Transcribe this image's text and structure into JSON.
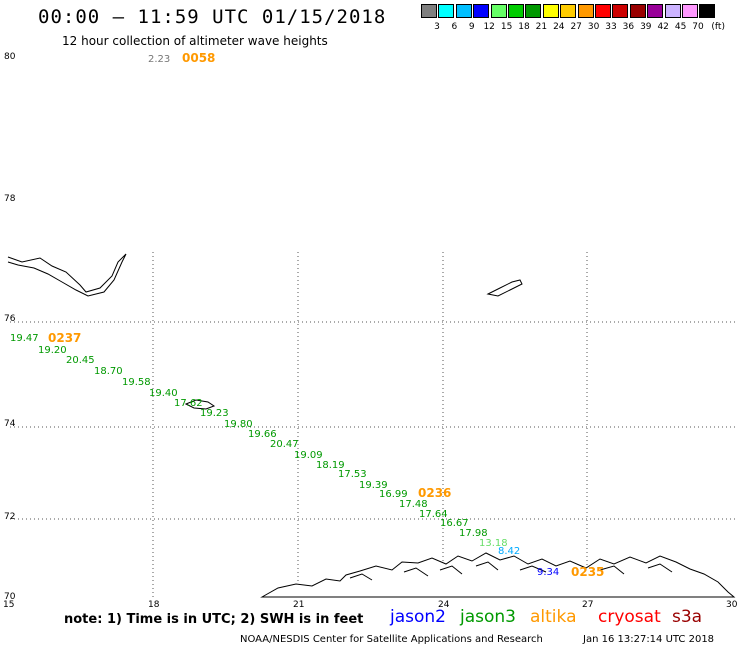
{
  "header": {
    "title": "00:00 – 11:59 UTC 01/15/2018",
    "subtitle": "12 hour collection of altimeter wave heights"
  },
  "legend": {
    "unit": "(ft)",
    "bins": [
      {
        "label": "3",
        "color": "#7f7f7f"
      },
      {
        "label": "6",
        "color": "#00ffff"
      },
      {
        "label": "9",
        "color": "#00bfff"
      },
      {
        "label": "12",
        "color": "#0000ff"
      },
      {
        "label": "15",
        "color": "#66ff66"
      },
      {
        "label": "18",
        "color": "#00cc00"
      },
      {
        "label": "21",
        "color": "#009900"
      },
      {
        "label": "24",
        "color": "#ffff00"
      },
      {
        "label": "27",
        "color": "#ffcc00"
      },
      {
        "label": "30",
        "color": "#ff9900"
      },
      {
        "label": "33",
        "color": "#ff0000"
      },
      {
        "label": "36",
        "color": "#cc0000"
      },
      {
        "label": "39",
        "color": "#990000"
      },
      {
        "label": "42",
        "color": "#990099"
      },
      {
        "label": "45",
        "color": "#ccb3ff"
      },
      {
        "label": "70",
        "color": "#ff99ff"
      },
      {
        "label": "",
        "color": "#000000"
      }
    ]
  },
  "axes": {
    "lat_labels": [
      "80",
      "78",
      "76",
      "74",
      "72",
      "70"
    ],
    "lon_labels": [
      "15",
      "18",
      "21",
      "24",
      "27",
      "30"
    ]
  },
  "top_annotation": {
    "value": "2.23",
    "time": "0058"
  },
  "time_marks": [
    "0237",
    "0236",
    "0235"
  ],
  "wave_readings": [
    {
      "value": "19.47",
      "color": "#009900"
    },
    {
      "value": "19.20",
      "color": "#009900"
    },
    {
      "value": "20.45",
      "color": "#009900"
    },
    {
      "value": "18.70",
      "color": "#009900"
    },
    {
      "value": "19.58",
      "color": "#009900"
    },
    {
      "value": "19.40",
      "color": "#009900"
    },
    {
      "value": "17.62",
      "color": "#009900"
    },
    {
      "value": "19.23",
      "color": "#009900"
    },
    {
      "value": "19.80",
      "color": "#009900"
    },
    {
      "value": "19.66",
      "color": "#009900"
    },
    {
      "value": "20.47",
      "color": "#009900"
    },
    {
      "value": "19.09",
      "color": "#009900"
    },
    {
      "value": "18.19",
      "color": "#009900"
    },
    {
      "value": "17.53",
      "color": "#009900"
    },
    {
      "value": "19.39",
      "color": "#009900"
    },
    {
      "value": "16.99",
      "color": "#009900"
    },
    {
      "value": "17.48",
      "color": "#009900"
    },
    {
      "value": "17.64",
      "color": "#009900"
    },
    {
      "value": "16.67",
      "color": "#009900"
    },
    {
      "value": "17.98",
      "color": "#009900"
    },
    {
      "value": "13.18",
      "color": "#66dd66"
    },
    {
      "value": "8.42",
      "color": "#00aaff"
    },
    {
      "value": "9.34",
      "color": "#0000ff"
    }
  ],
  "note": "note: 1) Time is in UTC; 2) SWH is in feet",
  "satellites": [
    {
      "name": "jason2",
      "color": "#0000ff"
    },
    {
      "name": "jason3",
      "color": "#009900"
    },
    {
      "name": "altika",
      "color": "#ff9900"
    },
    {
      "name": "cryosat",
      "color": "#ff0000"
    },
    {
      "name": "s3a",
      "color": "#990000"
    }
  ],
  "footer": {
    "credit": "NOAA/NESDIS Center for Satellite Applications and Research",
    "timestamp": "Jan 16 13:27:14 UTC 2018"
  }
}
